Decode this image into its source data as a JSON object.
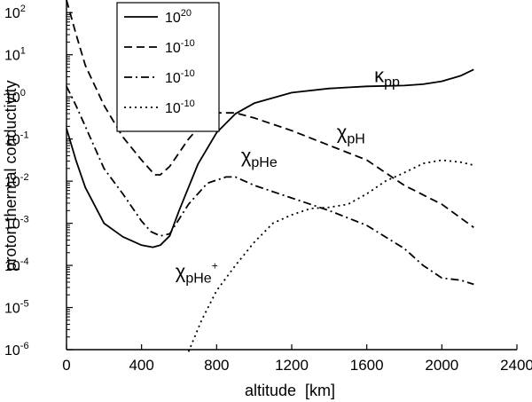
{
  "chart_data": {
    "type": "line",
    "title": "",
    "xlabel": "altitude  [km]",
    "ylabel": "proton thermal conductivity",
    "xlim": [
      0,
      2400
    ],
    "ylim_log10": [
      -6,
      2.3
    ],
    "y_scale": "log",
    "x_ticks": [
      {
        "value": 0,
        "label": "0"
      },
      {
        "value": 400,
        "label": "400"
      },
      {
        "value": 800,
        "label": "800"
      },
      {
        "value": 1200,
        "label": "1200"
      },
      {
        "value": 1600,
        "label": "1600"
      },
      {
        "value": 2000,
        "label": "2000"
      },
      {
        "value": 2400,
        "label": "2400"
      }
    ],
    "y_ticks": [
      {
        "exp": 2,
        "base": "10",
        "sup": "2"
      },
      {
        "exp": 1,
        "base": "10",
        "sup": "1"
      },
      {
        "exp": 0,
        "base": "10",
        "sup": "0"
      },
      {
        "exp": -1,
        "base": "10",
        "sup": "-1"
      },
      {
        "exp": -2,
        "base": "10",
        "sup": "-2"
      },
      {
        "exp": -3,
        "base": "10",
        "sup": "-3"
      },
      {
        "exp": -4,
        "base": "10",
        "sup": "-4"
      },
      {
        "exp": -5,
        "base": "10",
        "sup": "-5"
      },
      {
        "exp": -6,
        "base": "10",
        "sup": "-6"
      }
    ],
    "legend": {
      "position": "top-left",
      "entries": [
        {
          "base": "10",
          "sup": "20",
          "style": "solid"
        },
        {
          "base": "10",
          "sup": "-10",
          "style": "dashed"
        },
        {
          "base": "10",
          "sup": "-10",
          "style": "dashdot"
        },
        {
          "base": "10",
          "sup": "-10",
          "style": "dotted"
        }
      ]
    },
    "series": [
      {
        "name": "kappa_pp",
        "style": "solid",
        "annotation": {
          "symbol": "κ",
          "sub": "pp",
          "sup": "",
          "at": [
            1640,
            0.35
          ]
        },
        "points": [
          [
            0,
            -0.75
          ],
          [
            50,
            -1.5
          ],
          [
            100,
            -2.15
          ],
          [
            200,
            -3.0
          ],
          [
            300,
            -3.32
          ],
          [
            400,
            -3.52
          ],
          [
            460,
            -3.57
          ],
          [
            500,
            -3.52
          ],
          [
            550,
            -3.3
          ],
          [
            600,
            -2.7
          ],
          [
            700,
            -1.6
          ],
          [
            800,
            -0.85
          ],
          [
            900,
            -0.4
          ],
          [
            1000,
            -0.15
          ],
          [
            1200,
            0.1
          ],
          [
            1400,
            0.2
          ],
          [
            1600,
            0.25
          ],
          [
            1800,
            0.27
          ],
          [
            1900,
            0.3
          ],
          [
            2000,
            0.37
          ],
          [
            2100,
            0.5
          ],
          [
            2170,
            0.65
          ]
        ]
      },
      {
        "name": "chi_pH",
        "style": "dashed",
        "annotation": {
          "symbol": "χ",
          "sub": "pH",
          "sup": "",
          "at": [
            1440,
            -1.0
          ]
        },
        "points": [
          [
            0,
            2.3
          ],
          [
            50,
            1.5
          ],
          [
            100,
            0.75
          ],
          [
            200,
            -0.2
          ],
          [
            300,
            -0.95
          ],
          [
            400,
            -1.5
          ],
          [
            470,
            -1.85
          ],
          [
            500,
            -1.85
          ],
          [
            550,
            -1.65
          ],
          [
            650,
            -1.0
          ],
          [
            750,
            -0.5
          ],
          [
            800,
            -0.38
          ],
          [
            900,
            -0.38
          ],
          [
            1000,
            -0.5
          ],
          [
            1200,
            -0.8
          ],
          [
            1400,
            -1.15
          ],
          [
            1600,
            -1.5
          ],
          [
            1800,
            -2.1
          ],
          [
            2000,
            -2.55
          ],
          [
            2170,
            -3.1
          ]
        ]
      },
      {
        "name": "chi_pHe",
        "style": "dashdot",
        "annotation": {
          "symbol": "χ",
          "sub": "pHe",
          "sup": "",
          "at": [
            930,
            -1.55
          ]
        },
        "points": [
          [
            0,
            0.25
          ],
          [
            50,
            -0.2
          ],
          [
            100,
            -0.7
          ],
          [
            200,
            -1.7
          ],
          [
            300,
            -2.3
          ],
          [
            400,
            -2.95
          ],
          [
            450,
            -3.2
          ],
          [
            500,
            -3.3
          ],
          [
            550,
            -3.25
          ],
          [
            650,
            -2.55
          ],
          [
            750,
            -2.05
          ],
          [
            850,
            -1.9
          ],
          [
            900,
            -1.9
          ],
          [
            1000,
            -2.1
          ],
          [
            1200,
            -2.4
          ],
          [
            1400,
            -2.7
          ],
          [
            1600,
            -3.05
          ],
          [
            1800,
            -3.6
          ],
          [
            1900,
            -4.0
          ],
          [
            2000,
            -4.3
          ],
          [
            2100,
            -4.35
          ],
          [
            2170,
            -4.45
          ]
        ]
      },
      {
        "name": "chi_pHe_plus",
        "style": "dotted",
        "annotation": {
          "symbol": "χ",
          "sub": "pHe",
          "sup": "+",
          "at": [
            580,
            -4.3
          ]
        },
        "points": [
          [
            650,
            -6.05
          ],
          [
            720,
            -5.3
          ],
          [
            800,
            -4.6
          ],
          [
            900,
            -4.0
          ],
          [
            1000,
            -3.45
          ],
          [
            1100,
            -3.0
          ],
          [
            1200,
            -2.8
          ],
          [
            1300,
            -2.65
          ],
          [
            1400,
            -2.62
          ],
          [
            1500,
            -2.55
          ],
          [
            1600,
            -2.3
          ],
          [
            1700,
            -2.0
          ],
          [
            1800,
            -1.8
          ],
          [
            1900,
            -1.58
          ],
          [
            2000,
            -1.5
          ],
          [
            2100,
            -1.55
          ],
          [
            2170,
            -1.62
          ]
        ]
      }
    ]
  }
}
